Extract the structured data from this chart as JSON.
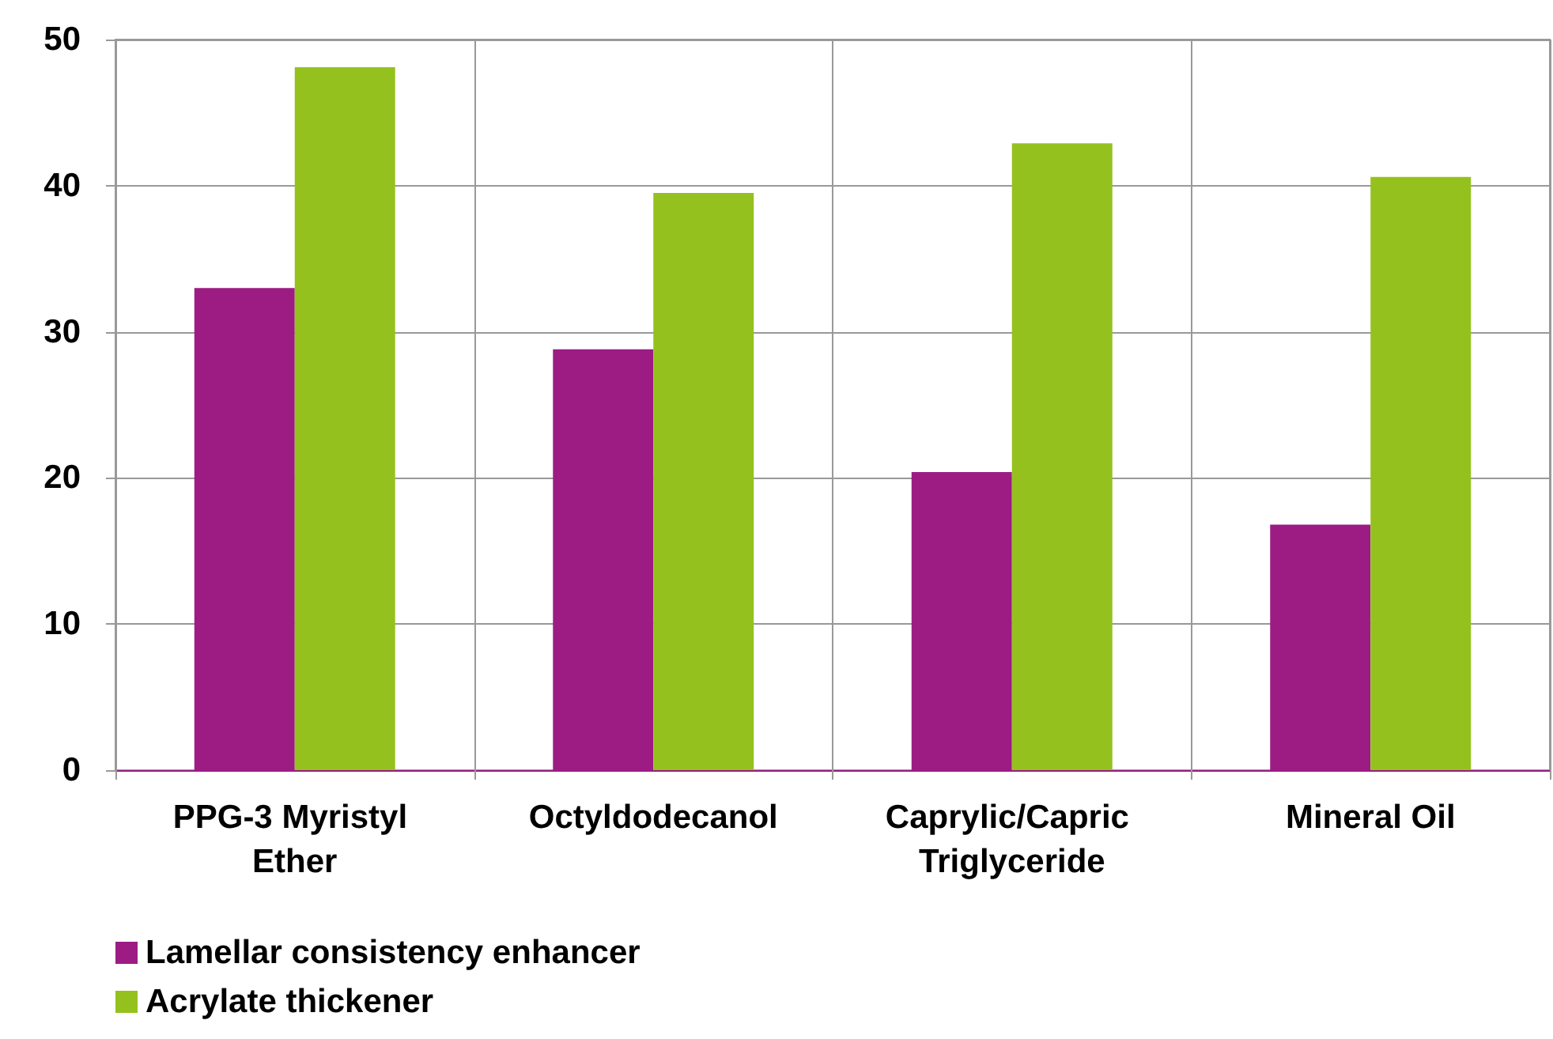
{
  "chart_data": {
    "type": "bar",
    "categories": [
      "PPG-3 Myristyl Ether",
      "Octyldodecanol",
      "Caprylic/Capric Triglyceride",
      "Mineral Oil"
    ],
    "series": [
      {
        "name": "Lamellar consistency enhancer",
        "color": "#9c1c84",
        "values": [
          33,
          28.8,
          20.4,
          16.8
        ]
      },
      {
        "name": "Acrylate thickener",
        "color": "#95c11f",
        "values": [
          48.1,
          39.5,
          42.9,
          40.6
        ]
      }
    ],
    "ylim": [
      0,
      50
    ],
    "yticks": [
      0,
      10,
      20,
      30,
      40,
      50
    ],
    "grid": true,
    "legend": "bottom left"
  }
}
